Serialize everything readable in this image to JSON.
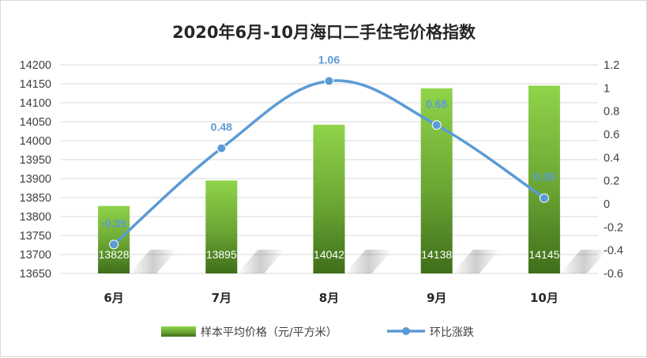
{
  "chart_data": {
    "type": "bar+line",
    "title": "2020年6月-10月海口二手住宅价格指数",
    "categories": [
      "6月",
      "7月",
      "8月",
      "9月",
      "10月"
    ],
    "series": [
      {
        "name": "样本平均价格（元/平方米）",
        "type": "bar",
        "axis": "left",
        "values": [
          13828,
          13895,
          14042,
          14138,
          14145
        ],
        "labels": [
          "13828",
          "13895",
          "14042",
          "14138",
          "14145"
        ]
      },
      {
        "name": "环比涨跌",
        "type": "line",
        "axis": "right",
        "values": [
          -0.35,
          0.48,
          1.06,
          0.68,
          0.05
        ],
        "labels": [
          "-0.35",
          "0.48",
          "1.06",
          "0.68",
          "0.05"
        ]
      }
    ],
    "y_left": {
      "min": 13650,
      "max": 14200,
      "step": 50,
      "ticks": [
        "13650",
        "13700",
        "13750",
        "13800",
        "13850",
        "13900",
        "13950",
        "14000",
        "14050",
        "14100",
        "14150",
        "14200"
      ]
    },
    "y_right": {
      "min": -0.6,
      "max": 1.2,
      "step": 0.2,
      "ticks": [
        "-0.6",
        "-0.4",
        "-0.2",
        "0",
        "0.2",
        "0.4",
        "0.6",
        "0.8",
        "1",
        "1.2"
      ]
    },
    "grid": true,
    "legend_position": "bottom",
    "colors": {
      "bar_top": "#8fd44a",
      "bar_bottom": "#3f6e1a",
      "line": "#5b9bd5",
      "grid": "#d9d9d9"
    }
  }
}
